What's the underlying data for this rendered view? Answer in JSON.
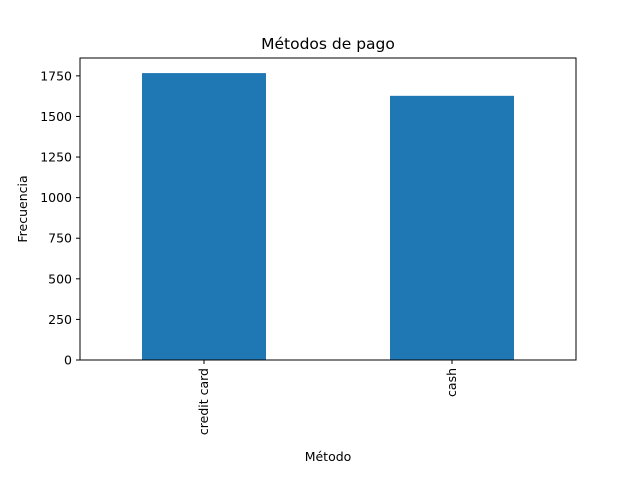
{
  "chart_data": {
    "type": "bar",
    "title": "Métodos de pago",
    "xlabel": "Método",
    "ylabel": "Frecuencia",
    "categories": [
      "credit card",
      "cash"
    ],
    "values": [
      1767,
      1627
    ],
    "ylim": [
      0,
      1860
    ],
    "yticks": [
      0,
      250,
      500,
      750,
      1000,
      1250,
      1500,
      1750
    ],
    "bar_color": "#1f77b4",
    "grid": false,
    "legend": "none"
  }
}
